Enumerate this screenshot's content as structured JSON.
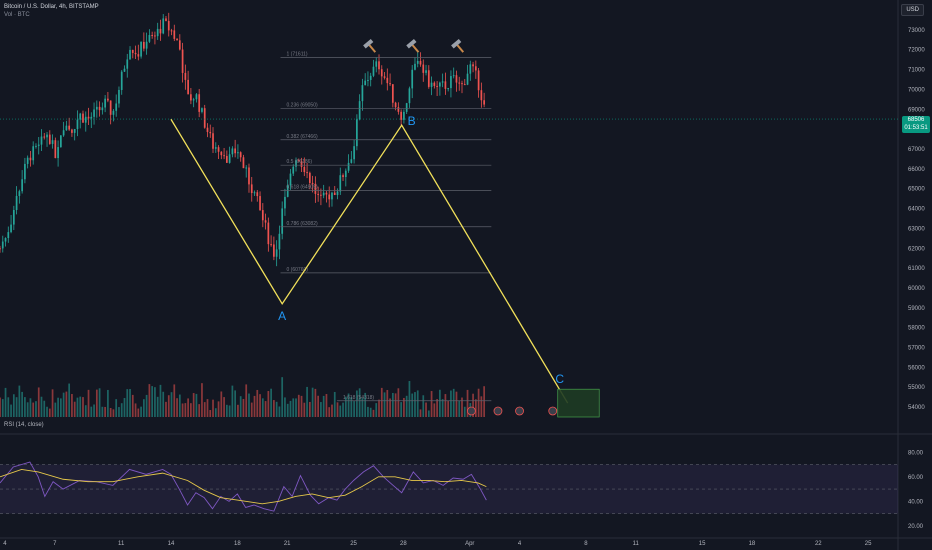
{
  "header": {
    "title": "Bitcoin / U.S. Dollar, 4h, BITSTAMP",
    "subtitle": "Vol · BTC",
    "currency": "USD",
    "rsi_label": "RSI (14, close)"
  },
  "last_price": {
    "value": "68506",
    "timer": "01:53:51"
  },
  "colors": {
    "background": "#131722",
    "up": "#26a69a",
    "down": "#ef5350",
    "pattern": "#f1e05a",
    "label": "#2196f3",
    "rsi_line": "#7e57c2",
    "rsi_ma": "#e6c84a",
    "target_zone": "#1e3b24"
  },
  "chart_data": [
    {
      "type": "candlestick",
      "ylim": [
        53500,
        73700
      ],
      "y_ticks": [
        54000,
        55000,
        56000,
        57000,
        58000,
        59000,
        60000,
        61000,
        62000,
        63000,
        64000,
        65000,
        66000,
        67000,
        68000,
        69000,
        70000,
        71000,
        72000,
        73000
      ],
      "x_ticks": [
        "4",
        "7",
        "11",
        "14",
        "18",
        "21",
        "25",
        "28",
        "Apr",
        "4",
        "8",
        "11",
        "15",
        "18",
        "22",
        "25"
      ],
      "x_tick_positions": [
        4,
        7,
        11,
        14,
        18,
        21,
        25,
        28,
        32,
        35,
        39,
        42,
        46,
        49,
        53,
        56
      ],
      "x_range": [
        3.7,
        57.8
      ],
      "close_path": [
        [
          3.7,
          62000
        ],
        [
          4.3,
          63200
        ],
        [
          5.0,
          65500
        ],
        [
          5.5,
          66700
        ],
        [
          6.0,
          67000
        ],
        [
          6.6,
          67900
        ],
        [
          7.0,
          66700
        ],
        [
          7.5,
          68300
        ],
        [
          8.0,
          68000
        ],
        [
          8.5,
          68700
        ],
        [
          9.0,
          68500
        ],
        [
          9.5,
          68800
        ],
        [
          10.0,
          69300
        ],
        [
          10.5,
          68800
        ],
        [
          11.0,
          70500
        ],
        [
          11.5,
          72300
        ],
        [
          12.0,
          71800
        ],
        [
          12.5,
          72500
        ],
        [
          13.0,
          72600
        ],
        [
          13.5,
          73300
        ],
        [
          14.0,
          73000
        ],
        [
          14.5,
          72200
        ],
        [
          15.0,
          69500
        ],
        [
          15.5,
          69700
        ],
        [
          16.0,
          68400
        ],
        [
          16.5,
          67200
        ],
        [
          17.0,
          67000
        ],
        [
          17.5,
          66500
        ],
        [
          18.0,
          67000
        ],
        [
          18.5,
          65800
        ],
        [
          19.0,
          64800
        ],
        [
          19.5,
          63500
        ],
        [
          20.0,
          62200
        ],
        [
          20.3,
          61600
        ],
        [
          20.6,
          63500
        ],
        [
          21.0,
          64800
        ],
        [
          21.5,
          66700
        ],
        [
          22.0,
          66200
        ],
        [
          22.5,
          65200
        ],
        [
          23.0,
          64300
        ],
        [
          23.5,
          64700
        ],
        [
          24.0,
          65000
        ],
        [
          24.5,
          66000
        ],
        [
          25.0,
          67000
        ],
        [
          25.5,
          70000
        ],
        [
          26.0,
          70800
        ],
        [
          26.5,
          71300
        ],
        [
          27.0,
          70400
        ],
        [
          27.5,
          69300
        ],
        [
          28.0,
          68600
        ],
        [
          28.5,
          70800
        ],
        [
          29.0,
          71300
        ],
        [
          29.5,
          70400
        ],
        [
          30.0,
          70000
        ],
        [
          30.5,
          70200
        ],
        [
          31.0,
          70500
        ],
        [
          31.5,
          70100
        ],
        [
          32.0,
          71200
        ],
        [
          32.5,
          70400
        ],
        [
          32.8,
          69400
        ],
        [
          33.0,
          68506
        ]
      ],
      "fib_levels": [
        {
          "label": "1 (71611)",
          "value": 71611
        },
        {
          "label": "0.236 (69050)",
          "value": 69050
        },
        {
          "label": "0.382 (67466)",
          "value": 67466
        },
        {
          "label": "0.5 (66186)",
          "value": 66186
        },
        {
          "label": "0.618 (64905)",
          "value": 64905
        },
        {
          "label": "0.786 (63082)",
          "value": 63082
        },
        {
          "label": "0 (60760)",
          "value": 60760
        },
        {
          "label": "1.618 (54318)",
          "value": 54318
        }
      ],
      "abc_pattern": {
        "points": [
          {
            "label": "",
            "x": 14.0,
            "y": 68500
          },
          {
            "label": "A",
            "x": 20.7,
            "y": 59200
          },
          {
            "label": "B",
            "x": 27.9,
            "y": 68200
          },
          {
            "label": "C",
            "x": 37.9,
            "y": 54200
          }
        ]
      },
      "target_zone": {
        "x": [
          37.3,
          39.8
        ],
        "y": [
          53500,
          54900
        ]
      },
      "markers": [
        {
          "type": "hammer",
          "x": 26.0
        },
        {
          "type": "hammer",
          "x": 28.6
        },
        {
          "type": "hammer",
          "x": 31.3
        }
      ]
    },
    {
      "type": "line",
      "name": "RSI (14, close)",
      "ylim": [
        15,
        90
      ],
      "y_ticks": [
        20,
        40,
        60,
        80
      ],
      "band": [
        30,
        70
      ],
      "rsi": [
        [
          3.7,
          55
        ],
        [
          4.5,
          68
        ],
        [
          5.5,
          72
        ],
        [
          6.0,
          60
        ],
        [
          6.4,
          44
        ],
        [
          6.9,
          56
        ],
        [
          7.5,
          50
        ],
        [
          8.5,
          57
        ],
        [
          9.5,
          56
        ],
        [
          10.5,
          53
        ],
        [
          11.5,
          66
        ],
        [
          12.5,
          62
        ],
        [
          13.5,
          66
        ],
        [
          14.0,
          62
        ],
        [
          14.5,
          50
        ],
        [
          15.0,
          37
        ],
        [
          15.5,
          47
        ],
        [
          16.0,
          43
        ],
        [
          16.5,
          34
        ],
        [
          17.0,
          44
        ],
        [
          17.5,
          40
        ],
        [
          18.0,
          46
        ],
        [
          18.5,
          35
        ],
        [
          19.0,
          37
        ],
        [
          19.6,
          34
        ],
        [
          20.2,
          32
        ],
        [
          20.8,
          52
        ],
        [
          21.3,
          44
        ],
        [
          21.8,
          61
        ],
        [
          22.4,
          45
        ],
        [
          22.9,
          38
        ],
        [
          23.5,
          43
        ],
        [
          24.0,
          41
        ],
        [
          24.5,
          50
        ],
        [
          25.0,
          57
        ],
        [
          25.6,
          64
        ],
        [
          26.2,
          69
        ],
        [
          26.8,
          60
        ],
        [
          27.3,
          54
        ],
        [
          27.9,
          47
        ],
        [
          28.6,
          64
        ],
        [
          29.2,
          55
        ],
        [
          29.8,
          57
        ],
        [
          30.4,
          53
        ],
        [
          31.0,
          59
        ],
        [
          31.6,
          58
        ],
        [
          32.1,
          62
        ],
        [
          32.6,
          51
        ],
        [
          33.0,
          41
        ]
      ],
      "rsi_ma": [
        [
          3.7,
          60
        ],
        [
          5.0,
          66
        ],
        [
          6.0,
          64
        ],
        [
          7.5,
          58
        ],
        [
          9.0,
          56
        ],
        [
          10.5,
          56
        ],
        [
          12.0,
          60
        ],
        [
          13.5,
          63
        ],
        [
          15.0,
          57
        ],
        [
          16.0,
          49
        ],
        [
          17.0,
          43
        ],
        [
          18.0,
          41
        ],
        [
          19.5,
          38
        ],
        [
          20.5,
          40
        ],
        [
          21.5,
          44
        ],
        [
          22.5,
          46
        ],
        [
          23.5,
          43
        ],
        [
          24.5,
          45
        ],
        [
          25.5,
          52
        ],
        [
          26.5,
          60
        ],
        [
          27.5,
          60
        ],
        [
          28.5,
          57
        ],
        [
          29.5,
          57
        ],
        [
          30.5,
          56
        ],
        [
          31.5,
          57
        ],
        [
          32.5,
          55
        ],
        [
          33.0,
          52
        ]
      ]
    }
  ]
}
